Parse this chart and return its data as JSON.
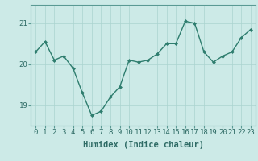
{
  "x": [
    0,
    1,
    2,
    3,
    4,
    5,
    6,
    7,
    8,
    9,
    10,
    11,
    12,
    13,
    14,
    15,
    16,
    17,
    18,
    19,
    20,
    21,
    22,
    23
  ],
  "y": [
    20.3,
    20.55,
    20.1,
    20.2,
    19.9,
    19.3,
    18.75,
    18.85,
    19.2,
    19.45,
    20.1,
    20.05,
    20.1,
    20.25,
    20.5,
    20.5,
    21.05,
    21.0,
    20.3,
    20.05,
    20.2,
    20.3,
    20.65,
    20.85
  ],
  "line_color": "#2e7d6e",
  "marker": "D",
  "marker_size": 2.0,
  "bg_color": "#cceae7",
  "grid_color": "#aad4d0",
  "xlabel": "Humidex (Indice chaleur)",
  "ylim": [
    18.5,
    21.45
  ],
  "yticks": [
    19,
    20,
    21
  ],
  "xlim": [
    -0.5,
    23.5
  ],
  "xticks": [
    0,
    1,
    2,
    3,
    4,
    5,
    6,
    7,
    8,
    9,
    10,
    11,
    12,
    13,
    14,
    15,
    16,
    17,
    18,
    19,
    20,
    21,
    22,
    23
  ],
  "xlabel_fontsize": 7.5,
  "tick_fontsize": 6.5,
  "line_width": 1.0,
  "spine_color": "#5a9a94"
}
